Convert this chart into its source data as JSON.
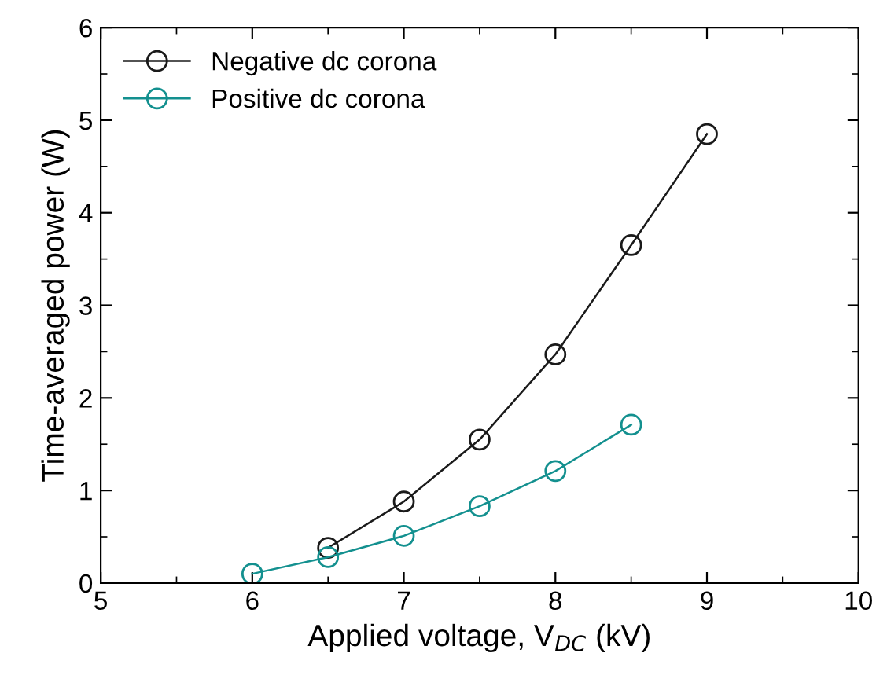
{
  "chart_data": {
    "type": "line",
    "xlabel": "Applied voltage, V$_{DC}$ (kV)",
    "ylabel": "Time-averaged power (W)",
    "xlim": [
      5,
      10
    ],
    "xticks": [
      5,
      6,
      7,
      8,
      9,
      10
    ],
    "ylim": [
      0,
      6
    ],
    "yticks": [
      0,
      1,
      2,
      3,
      4,
      5,
      6
    ],
    "grid": false,
    "legend": "top left",
    "marker": "circle",
    "line_style": "solid",
    "series": [
      {
        "name": "Negative dc corona",
        "color": "#1a1a1a",
        "x": [
          6.5,
          7,
          7.5,
          8,
          8.5,
          9
        ],
        "values": [
          0.38,
          0.88,
          1.55,
          2.47,
          3.65,
          4.85
        ]
      },
      {
        "name": "Positive dc corona",
        "color": "#13908f",
        "x": [
          6,
          6.5,
          7,
          7.5,
          8,
          8.5
        ],
        "values": [
          0.1,
          0.28,
          0.51,
          0.83,
          1.21,
          1.71
        ]
      }
    ]
  }
}
